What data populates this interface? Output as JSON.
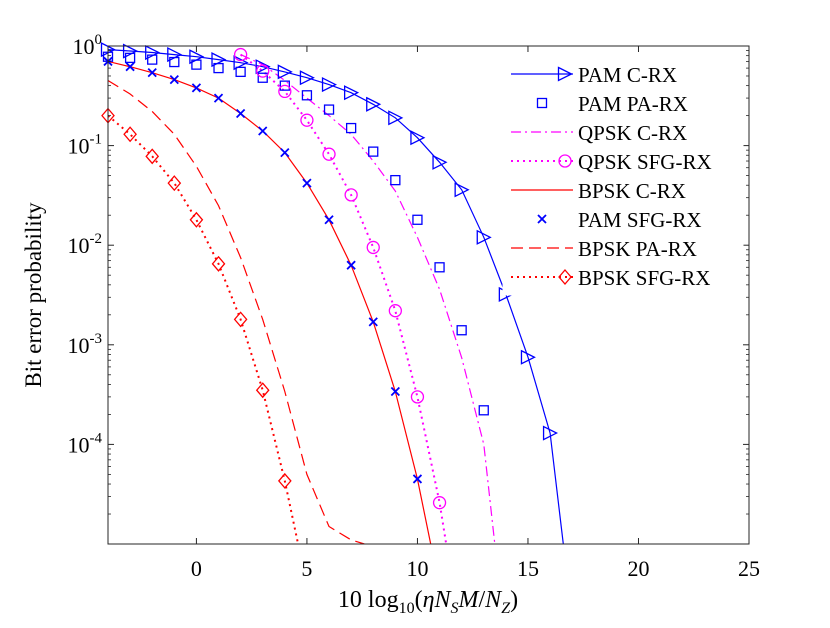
{
  "chart_data": {
    "type": "line",
    "yscale": "log",
    "xlabel": "10 log10(ηN_S M/N_Z)",
    "xlabel_parts": {
      "pre": "10 log",
      "sub10": "10",
      "open": "(",
      "eta": "η",
      "N1": "N",
      "sub1": "S",
      "M": "M",
      "slash": "/",
      "N2": "N",
      "sub2": "Z",
      "close": ")"
    },
    "ylabel": "Bit error probability",
    "xlim": [
      -4,
      25
    ],
    "ylim": [
      1e-05,
      1
    ],
    "xticks": [
      0,
      5,
      10,
      15,
      20,
      25
    ],
    "xtick_labels": [
      "0",
      "5",
      "10",
      "15",
      "20",
      "25"
    ],
    "yticks": [
      0.0001,
      0.001,
      0.01,
      0.1,
      1
    ],
    "ytick_labels": [
      {
        "base": "10",
        "exp": "-4"
      },
      {
        "base": "10",
        "exp": "-3"
      },
      {
        "base": "10",
        "exp": "-2"
      },
      {
        "base": "10",
        "exp": "-1"
      },
      {
        "base": "10",
        "exp": "0"
      }
    ],
    "legend_position": "top-right",
    "series": [
      {
        "name": "PAM C-RX",
        "color": "#0000ff",
        "line": "solid",
        "marker": "triangle-right",
        "x": [
          -4,
          -3,
          -2,
          -1,
          0,
          1,
          2,
          3,
          4,
          5,
          6,
          7,
          8,
          9,
          10,
          11,
          12,
          13,
          14,
          15,
          16,
          16.6
        ],
        "y": [
          0.92,
          0.89,
          0.86,
          0.82,
          0.78,
          0.73,
          0.68,
          0.62,
          0.55,
          0.48,
          0.41,
          0.34,
          0.26,
          0.19,
          0.12,
          0.068,
          0.036,
          0.012,
          0.0032,
          0.00075,
          0.00013,
          1e-05
        ],
        "marker_x": [
          -4,
          -3,
          -2,
          -1,
          0,
          1,
          2,
          3,
          4,
          5,
          6,
          7,
          8,
          9,
          10,
          11,
          12,
          13,
          14,
          15,
          16
        ],
        "marker_y": [
          0.92,
          0.89,
          0.86,
          0.82,
          0.78,
          0.73,
          0.68,
          0.62,
          0.55,
          0.48,
          0.41,
          0.34,
          0.26,
          0.19,
          0.12,
          0.068,
          0.036,
          0.012,
          0.0032,
          0.00075,
          0.00013
        ]
      },
      {
        "name": "PAM PA-RX",
        "color": "#0000ff",
        "line": "none",
        "marker": "square",
        "marker_x": [
          -4,
          -3,
          -2,
          -1,
          0,
          1,
          2,
          3,
          4,
          5,
          6,
          7,
          8,
          9,
          10,
          11,
          12,
          13
        ],
        "marker_y": [
          0.78,
          0.76,
          0.73,
          0.69,
          0.65,
          0.6,
          0.55,
          0.48,
          0.4,
          0.32,
          0.23,
          0.15,
          0.087,
          0.045,
          0.018,
          0.006,
          0.0014,
          0.00022
        ]
      },
      {
        "name": "QPSK C-RX",
        "color": "#ff00ff",
        "line": "dashdot",
        "marker": "none",
        "x": [
          2,
          3,
          4,
          5,
          6,
          7,
          8,
          9,
          10,
          11,
          12,
          13,
          13.5
        ],
        "y": [
          0.82,
          0.65,
          0.45,
          0.3,
          0.2,
          0.13,
          0.07,
          0.035,
          0.012,
          0.0036,
          0.00074,
          0.0001,
          1e-05
        ]
      },
      {
        "name": "QPSK SFG-RX",
        "color": "#ff00ff",
        "line": "dotted",
        "marker": "circle",
        "x": [
          2,
          3,
          4,
          5,
          6,
          7,
          8,
          9,
          10,
          11,
          11.3
        ],
        "y": [
          0.82,
          0.56,
          0.35,
          0.18,
          0.082,
          0.032,
          0.0095,
          0.0022,
          0.0003,
          2.6e-05,
          1e-05
        ],
        "marker_x": [
          2,
          3,
          4,
          5,
          6,
          7,
          8,
          9,
          10,
          11
        ],
        "marker_y": [
          0.82,
          0.56,
          0.35,
          0.18,
          0.082,
          0.032,
          0.0095,
          0.0022,
          0.0003,
          2.6e-05
        ]
      },
      {
        "name": "BPSK C-RX",
        "color": "#ff0000",
        "line": "solid",
        "marker": "none",
        "x": [
          -4,
          -3,
          -2,
          -1,
          0,
          1,
          2,
          3,
          4,
          5,
          6,
          7,
          8,
          9,
          10,
          10.6
        ],
        "y": [
          0.7,
          0.62,
          0.54,
          0.46,
          0.38,
          0.3,
          0.21,
          0.14,
          0.085,
          0.042,
          0.018,
          0.0063,
          0.0017,
          0.00034,
          4.5e-05,
          1e-05
        ]
      },
      {
        "name": "PAM SFG-RX",
        "color": "#0000ff",
        "line": "none",
        "marker": "x",
        "marker_x": [
          -4,
          -3,
          -2,
          -1,
          0,
          1,
          2,
          3,
          4,
          5,
          6,
          7,
          8,
          9,
          10
        ],
        "marker_y": [
          0.7,
          0.62,
          0.54,
          0.46,
          0.38,
          0.3,
          0.21,
          0.14,
          0.085,
          0.042,
          0.018,
          0.0063,
          0.0017,
          0.00034,
          4.5e-05
        ]
      },
      {
        "name": "BPSK PA-RX",
        "color": "#ff0000",
        "line": "dashed",
        "marker": "none",
        "x": [
          -4,
          -3,
          -2,
          -1,
          0,
          1,
          2,
          3,
          4,
          5,
          6,
          7,
          7.6
        ],
        "y": [
          0.45,
          0.33,
          0.22,
          0.13,
          0.062,
          0.025,
          0.0075,
          0.0018,
          0.00034,
          5e-05,
          1.5e-05,
          1.1e-05,
          1e-05
        ]
      },
      {
        "name": "BPSK SFG-RX",
        "color": "#ff0000",
        "line": "dotted",
        "marker": "diamond",
        "x": [
          -4,
          -3,
          -2,
          -1,
          0,
          1,
          2,
          3,
          4,
          4.6
        ],
        "y": [
          0.2,
          0.13,
          0.078,
          0.042,
          0.018,
          0.0065,
          0.0018,
          0.00035,
          4.3e-05,
          1e-05
        ],
        "marker_x": [
          -4,
          -3,
          -2,
          -1,
          0,
          1,
          2,
          3,
          4
        ],
        "marker_y": [
          0.2,
          0.13,
          0.078,
          0.042,
          0.018,
          0.0065,
          0.0018,
          0.00035,
          4.3e-05
        ]
      }
    ]
  }
}
